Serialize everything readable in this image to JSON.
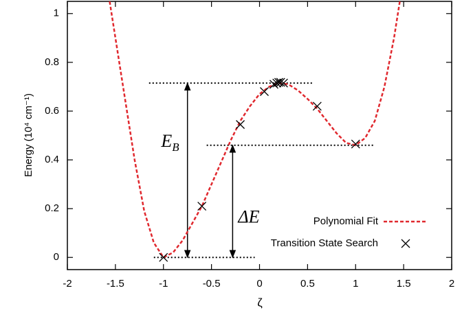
{
  "chart_data": {
    "type": "line",
    "xlabel": "ζ",
    "ylabel": "Energy (10⁴ cm⁻¹)",
    "xlim": [
      -2,
      2
    ],
    "xticks": [
      -2,
      -1.5,
      -1,
      -0.5,
      0,
      0.5,
      1,
      1.5,
      2
    ],
    "ylim": [
      -0.05,
      1.05
    ],
    "yticks": [
      0,
      0.2,
      0.4,
      0.6,
      0.8,
      1
    ],
    "legend": "bottom-right",
    "series": [
      {
        "name": "Polynomial Fit",
        "type": "line",
        "color": "#e0282e",
        "x": [
          -1.56,
          -1.5,
          -1.4,
          -1.3,
          -1.2,
          -1.1,
          -1.0,
          -0.9,
          -0.8,
          -0.7,
          -0.6,
          -0.5,
          -0.4,
          -0.3,
          -0.2,
          -0.1,
          0,
          0.1,
          0.2,
          0.3,
          0.4,
          0.5,
          0.6,
          0.7,
          0.8,
          0.9,
          1.0,
          1.1,
          1.2,
          1.3,
          1.4,
          1.46
        ],
        "values": [
          1.05,
          0.9,
          0.65,
          0.4,
          0.19,
          0.06,
          0.0,
          0.02,
          0.07,
          0.14,
          0.21,
          0.3,
          0.39,
          0.48,
          0.56,
          0.62,
          0.67,
          0.7,
          0.715,
          0.71,
          0.685,
          0.65,
          0.61,
          0.56,
          0.51,
          0.47,
          0.46,
          0.49,
          0.56,
          0.7,
          0.9,
          1.05
        ]
      },
      {
        "name": "Transition State Search",
        "type": "scatter",
        "color": "#000000",
        "x": [
          -1.0,
          -0.6,
          -0.2,
          0.05,
          0.15,
          0.18,
          0.2,
          0.22,
          0.25,
          0.6,
          1.0
        ],
        "values": [
          0.0,
          0.21,
          0.545,
          0.68,
          0.71,
          0.715,
          0.718,
          0.718,
          0.715,
          0.62,
          0.465
        ]
      }
    ],
    "hlines": [
      {
        "y": 0.715,
        "xlim": [
          -1.15,
          0.55
        ]
      },
      {
        "y": 0.46,
        "xlim": [
          -0.55,
          1.2
        ]
      },
      {
        "y": 0,
        "xlim": [
          -1.1,
          -0.05
        ]
      }
    ],
    "arrows": [
      {
        "x": -0.75,
        "y": [
          0,
          0.715
        ],
        "label": "E",
        "sub": "B"
      },
      {
        "x": -0.28,
        "y": [
          0,
          0.46
        ],
        "label": "ΔE"
      }
    ]
  }
}
